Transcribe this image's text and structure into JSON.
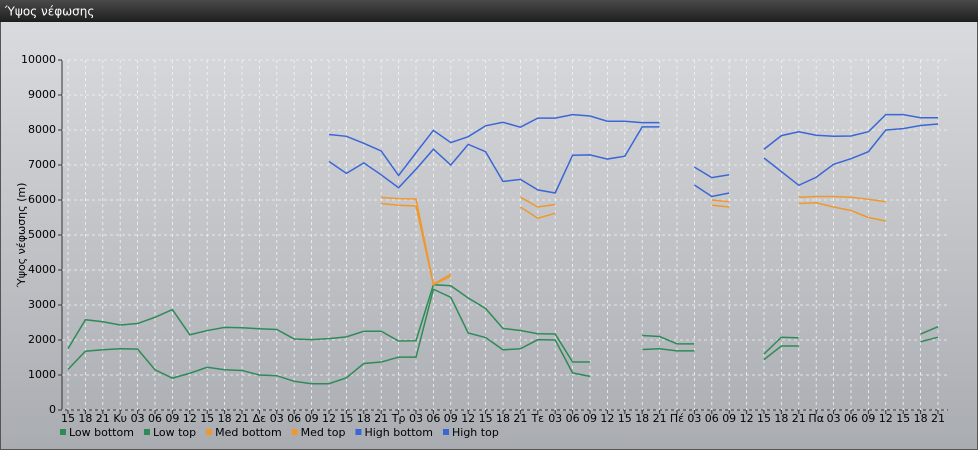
{
  "chart_data": {
    "type": "line",
    "title": "Ύψος νέφωσης",
    "ylabel": "Ύψος νέφωσης (m)",
    "categories": [
      "15",
      "18",
      "21",
      "Κυ",
      "03",
      "06",
      "09",
      "12",
      "15",
      "18",
      "21",
      "Δε",
      "03",
      "06",
      "09",
      "12",
      "15",
      "18",
      "21",
      "Τρ",
      "03",
      "06",
      "09",
      "12",
      "15",
      "18",
      "21",
      "Τε",
      "03",
      "06",
      "09",
      "12",
      "15",
      "18",
      "21",
      "Πέ",
      "03",
      "06",
      "09",
      "12",
      "15",
      "18",
      "21",
      "Πα",
      "03",
      "06",
      "09",
      "12",
      "15",
      "18",
      "21"
    ],
    "ylim": [
      0,
      10000
    ],
    "yticks": [
      0,
      1000,
      2000,
      3000,
      4000,
      5000,
      6000,
      7000,
      8000,
      9000,
      10000
    ],
    "grid": true,
    "series": [
      {
        "name": "Low bottom",
        "color": "#2e8b57",
        "values": [
          1160,
          1680,
          1720,
          1750,
          1740,
          1150,
          910,
          1050,
          1220,
          1150,
          1130,
          1000,
          980,
          820,
          750,
          750,
          920,
          1330,
          1370,
          1510,
          1510,
          3450,
          3220,
          2200,
          2070,
          1720,
          1750,
          2010,
          2000,
          1060,
          960,
          null,
          null,
          1730,
          1750,
          1690,
          1690,
          null,
          null,
          null,
          1440,
          1830,
          1830,
          null,
          null,
          null,
          null,
          null,
          null,
          1950,
          2080
        ]
      },
      {
        "name": "Low top",
        "color": "#2e8b57",
        "values": [
          1750,
          2580,
          2520,
          2430,
          2470,
          2650,
          2870,
          2150,
          2270,
          2360,
          2350,
          2320,
          2300,
          2030,
          2010,
          2040,
          2090,
          2250,
          2250,
          1970,
          1980,
          3580,
          3550,
          3200,
          2900,
          2330,
          2270,
          2180,
          2170,
          1370,
          1370,
          null,
          null,
          2130,
          2100,
          1890,
          1890,
          null,
          null,
          null,
          1600,
          2080,
          2060,
          null,
          null,
          null,
          null,
          null,
          null,
          2170,
          2380
        ]
      },
      {
        "name": "Med bottom",
        "color": "#f0982e",
        "values": [
          null,
          null,
          null,
          null,
          null,
          null,
          null,
          null,
          null,
          null,
          null,
          null,
          null,
          null,
          null,
          null,
          null,
          null,
          5900,
          5850,
          5830,
          3580,
          3820,
          null,
          null,
          null,
          5800,
          5480,
          5620,
          null,
          null,
          null,
          null,
          null,
          null,
          null,
          null,
          5850,
          5800,
          null,
          null,
          null,
          5900,
          5920,
          5800,
          5700,
          5500,
          5400,
          null,
          null,
          null
        ]
      },
      {
        "name": "Med top",
        "color": "#f0982e",
        "values": [
          null,
          null,
          null,
          null,
          null,
          null,
          null,
          null,
          null,
          null,
          null,
          null,
          null,
          null,
          null,
          null,
          null,
          null,
          6070,
          6040,
          6030,
          3600,
          3880,
          null,
          null,
          null,
          6080,
          5800,
          5870,
          null,
          null,
          null,
          null,
          null,
          null,
          null,
          null,
          6000,
          5950,
          null,
          null,
          null,
          6080,
          6100,
          6100,
          6080,
          6020,
          5950,
          null,
          null,
          null
        ]
      },
      {
        "name": "High bottom",
        "color": "#3a66d6",
        "values": [
          null,
          null,
          null,
          null,
          null,
          null,
          null,
          null,
          null,
          null,
          null,
          null,
          null,
          null,
          null,
          7100,
          6760,
          7060,
          6720,
          6350,
          6880,
          7450,
          7000,
          7590,
          7380,
          6530,
          6590,
          6290,
          6200,
          7280,
          7290,
          7170,
          7250,
          8090,
          8090,
          null,
          6430,
          6100,
          6200,
          null,
          7200,
          6810,
          6420,
          6650,
          7020,
          7180,
          7380,
          8000,
          8040,
          8130,
          8170
        ]
      },
      {
        "name": "High top",
        "color": "#3a66d6",
        "values": [
          null,
          null,
          null,
          null,
          null,
          null,
          null,
          null,
          null,
          null,
          null,
          null,
          null,
          null,
          null,
          7870,
          7820,
          7620,
          7400,
          6700,
          7350,
          7990,
          7640,
          7810,
          8120,
          8220,
          8080,
          8340,
          8340,
          8440,
          8400,
          8250,
          8250,
          8210,
          8210,
          null,
          6940,
          6640,
          6720,
          null,
          7450,
          7840,
          7950,
          7850,
          7820,
          7830,
          7950,
          8440,
          8440,
          8350,
          8350
        ]
      }
    ]
  }
}
